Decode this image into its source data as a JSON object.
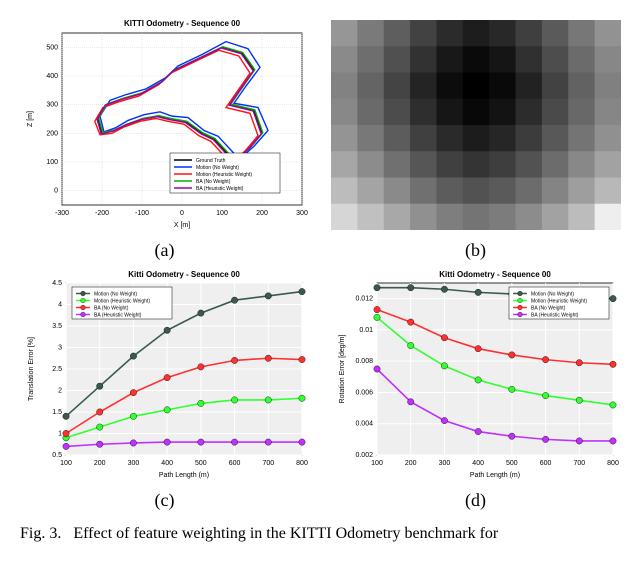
{
  "panel_a": {
    "title": "KITTI Odometry - Sequence 00",
    "xlabel": "X [m]",
    "ylabel": "Z [m]",
    "xlim": [
      -300,
      300
    ],
    "ylim": [
      -50,
      550
    ],
    "xticks": [
      -300,
      -200,
      -100,
      0,
      100,
      200,
      300
    ],
    "yticks": [
      0,
      100,
      200,
      300,
      400,
      500
    ],
    "bg_color": "#ffffff",
    "grid_color": "#d0d0d0",
    "series": [
      {
        "name": "Ground Truth",
        "color": "#000000",
        "points": [
          [
            -20,
            10
          ],
          [
            20,
            10
          ],
          [
            40,
            50
          ],
          [
            80,
            60
          ],
          [
            120,
            120
          ],
          [
            80,
            180
          ],
          [
            50,
            200
          ],
          [
            10,
            240
          ],
          [
            -30,
            250
          ],
          [
            -60,
            260
          ],
          [
            -100,
            250
          ],
          [
            -140,
            230
          ],
          [
            -170,
            210
          ],
          [
            -200,
            200
          ],
          [
            -210,
            250
          ],
          [
            -190,
            300
          ],
          [
            -150,
            320
          ],
          [
            -100,
            340
          ],
          [
            -50,
            380
          ],
          [
            -20,
            420
          ],
          [
            40,
            460
          ],
          [
            100,
            500
          ],
          [
            150,
            480
          ],
          [
            180,
            420
          ],
          [
            150,
            360
          ],
          [
            120,
            300
          ],
          [
            180,
            280
          ],
          [
            200,
            200
          ],
          [
            170,
            150
          ],
          [
            130,
            100
          ],
          [
            100,
            50
          ],
          [
            60,
            20
          ],
          [
            -20,
            10
          ]
        ]
      },
      {
        "name": "Motion (No Weight)",
        "color": "#0030ff",
        "points": [
          [
            -15,
            5
          ],
          [
            25,
            15
          ],
          [
            45,
            55
          ],
          [
            85,
            70
          ],
          [
            130,
            130
          ],
          [
            90,
            190
          ],
          [
            55,
            210
          ],
          [
            15,
            255
          ],
          [
            -25,
            260
          ],
          [
            -55,
            275
          ],
          [
            -95,
            265
          ],
          [
            -135,
            245
          ],
          [
            -165,
            220
          ],
          [
            -195,
            205
          ],
          [
            -205,
            260
          ],
          [
            -180,
            315
          ],
          [
            -140,
            335
          ],
          [
            -90,
            355
          ],
          [
            -40,
            395
          ],
          [
            -10,
            435
          ],
          [
            50,
            475
          ],
          [
            110,
            520
          ],
          [
            165,
            495
          ],
          [
            195,
            430
          ],
          [
            160,
            365
          ],
          [
            130,
            305
          ],
          [
            190,
            290
          ],
          [
            215,
            210
          ],
          [
            180,
            155
          ],
          [
            140,
            105
          ],
          [
            105,
            55
          ],
          [
            65,
            25
          ],
          [
            -15,
            5
          ]
        ]
      },
      {
        "name": "Motion (Heuristic Weight)",
        "color": "#ff1010",
        "points": [
          [
            -25,
            15
          ],
          [
            15,
            5
          ],
          [
            35,
            45
          ],
          [
            75,
            52
          ],
          [
            112,
            112
          ],
          [
            72,
            172
          ],
          [
            42,
            192
          ],
          [
            5,
            232
          ],
          [
            -35,
            242
          ],
          [
            -65,
            252
          ],
          [
            -105,
            242
          ],
          [
            -145,
            222
          ],
          [
            -175,
            200
          ],
          [
            -205,
            195
          ],
          [
            -218,
            242
          ],
          [
            -198,
            290
          ],
          [
            -158,
            310
          ],
          [
            -108,
            330
          ],
          [
            -58,
            370
          ],
          [
            -28,
            410
          ],
          [
            32,
            450
          ],
          [
            92,
            490
          ],
          [
            142,
            470
          ],
          [
            170,
            410
          ],
          [
            140,
            350
          ],
          [
            110,
            290
          ],
          [
            170,
            270
          ],
          [
            190,
            192
          ],
          [
            160,
            142
          ],
          [
            122,
            92
          ],
          [
            92,
            42
          ],
          [
            52,
            12
          ],
          [
            -25,
            15
          ]
        ]
      },
      {
        "name": "BA (No Weight)",
        "color": "#00b000",
        "points": [
          [
            -18,
            8
          ],
          [
            22,
            12
          ],
          [
            42,
            52
          ],
          [
            82,
            62
          ],
          [
            122,
            122
          ],
          [
            82,
            182
          ],
          [
            52,
            202
          ],
          [
            12,
            242
          ],
          [
            -28,
            252
          ],
          [
            -58,
            262
          ],
          [
            -98,
            252
          ],
          [
            -138,
            232
          ],
          [
            -168,
            212
          ],
          [
            -198,
            202
          ],
          [
            -208,
            252
          ],
          [
            -188,
            302
          ],
          [
            -148,
            322
          ],
          [
            -98,
            342
          ],
          [
            -48,
            382
          ],
          [
            -18,
            422
          ],
          [
            42,
            462
          ],
          [
            102,
            502
          ],
          [
            152,
            482
          ],
          [
            182,
            422
          ],
          [
            152,
            362
          ],
          [
            122,
            302
          ],
          [
            182,
            282
          ],
          [
            202,
            202
          ],
          [
            172,
            152
          ],
          [
            132,
            102
          ],
          [
            102,
            52
          ],
          [
            62,
            22
          ],
          [
            -18,
            8
          ]
        ]
      },
      {
        "name": "BA (Heuristic Weight)",
        "color": "#a000a0",
        "points": [
          [
            -22,
            12
          ],
          [
            18,
            8
          ],
          [
            38,
            48
          ],
          [
            78,
            58
          ],
          [
            118,
            118
          ],
          [
            78,
            178
          ],
          [
            48,
            198
          ],
          [
            8,
            238
          ],
          [
            -32,
            248
          ],
          [
            -62,
            258
          ],
          [
            -102,
            248
          ],
          [
            -142,
            228
          ],
          [
            -172,
            208
          ],
          [
            -202,
            198
          ],
          [
            -212,
            248
          ],
          [
            -192,
            298
          ],
          [
            -152,
            318
          ],
          [
            -102,
            338
          ],
          [
            -52,
            378
          ],
          [
            -22,
            418
          ],
          [
            38,
            458
          ],
          [
            98,
            498
          ],
          [
            148,
            478
          ],
          [
            178,
            418
          ],
          [
            148,
            358
          ],
          [
            118,
            298
          ],
          [
            178,
            278
          ],
          [
            198,
            198
          ],
          [
            168,
            148
          ],
          [
            128,
            98
          ],
          [
            98,
            48
          ],
          [
            58,
            18
          ],
          [
            -22,
            12
          ]
        ]
      }
    ]
  },
  "panel_b": {
    "rows": 8,
    "cols": 11,
    "colors": [
      [
        "#969696",
        "#7a7a7a",
        "#5e5e5e",
        "#424242",
        "#2b2b2b",
        "#1d1d1d",
        "#282828",
        "#3f3f3f",
        "#5a5a5a",
        "#777777",
        "#929292"
      ],
      [
        "#8a8a8a",
        "#6e6e6e",
        "#505050",
        "#323232",
        "#181818",
        "#0a0a0a",
        "#151515",
        "#303030",
        "#4d4d4d",
        "#6b6b6b",
        "#878787"
      ],
      [
        "#828282",
        "#646464",
        "#444444",
        "#242424",
        "#0c0c0c",
        "#000000",
        "#090909",
        "#222222",
        "#424242",
        "#626262",
        "#808080"
      ],
      [
        "#888888",
        "#6a6a6a",
        "#4c4c4c",
        "#2e2e2e",
        "#161616",
        "#080808",
        "#131313",
        "#2c2c2c",
        "#4a4a4a",
        "#686868",
        "#868686"
      ],
      [
        "#949494",
        "#787878",
        "#5c5c5c",
        "#404040",
        "#2a2a2a",
        "#1c1c1c",
        "#262626",
        "#3c3c3c",
        "#585858",
        "#747474",
        "#909090"
      ],
      [
        "#a6a6a6",
        "#8c8c8c",
        "#707070",
        "#565656",
        "#404040",
        "#343434",
        "#3e3e3e",
        "#525252",
        "#6c6c6c",
        "#888888",
        "#a2a2a2"
      ],
      [
        "#bcbcbc",
        "#a4a4a4",
        "#8a8a8a",
        "#707070",
        "#5c5c5c",
        "#525252",
        "#5a5a5a",
        "#6c6c6c",
        "#848484",
        "#9e9e9e",
        "#b8b8b8"
      ],
      [
        "#d6d6d6",
        "#c0c0c0",
        "#a8a8a8",
        "#909090",
        "#7e7e7e",
        "#747474",
        "#7c7c7c",
        "#8c8c8c",
        "#a2a2a2",
        "#bcbcbc",
        "#eeeeee"
      ]
    ]
  },
  "panel_c": {
    "title": "Kitti Odometry - Sequence 00",
    "xlabel": "Path Length (m)",
    "ylabel": "Translation Error [%]",
    "xlim": [
      100,
      800
    ],
    "ylim": [
      0.5,
      4.5
    ],
    "xticks": [
      100,
      200,
      300,
      400,
      500,
      600,
      700,
      800
    ],
    "yticks": [
      0.5,
      1,
      1.5,
      2,
      2.5,
      3,
      3.5,
      4,
      4.5
    ],
    "bg_color": "#efefef",
    "grid_color": "#ffffff",
    "series": [
      {
        "name": "Motion (No Weight)",
        "color": "#3a5a4a",
        "marker": "circle",
        "values": [
          [
            100,
            1.4
          ],
          [
            200,
            2.1
          ],
          [
            300,
            2.8
          ],
          [
            400,
            3.4
          ],
          [
            500,
            3.8
          ],
          [
            600,
            4.1
          ],
          [
            700,
            4.2
          ],
          [
            800,
            4.3
          ]
        ]
      },
      {
        "name": "Motion (Heuristic Weight)",
        "color": "#30ff30",
        "marker": "circle",
        "values": [
          [
            100,
            0.9
          ],
          [
            200,
            1.15
          ],
          [
            300,
            1.4
          ],
          [
            400,
            1.55
          ],
          [
            500,
            1.7
          ],
          [
            600,
            1.78
          ],
          [
            700,
            1.78
          ],
          [
            800,
            1.82
          ]
        ]
      },
      {
        "name": "BA (No Weight)",
        "color": "#ff3030",
        "marker": "circle",
        "values": [
          [
            100,
            1.0
          ],
          [
            200,
            1.5
          ],
          [
            300,
            1.95
          ],
          [
            400,
            2.3
          ],
          [
            500,
            2.55
          ],
          [
            600,
            2.7
          ],
          [
            700,
            2.75
          ],
          [
            800,
            2.72
          ]
        ]
      },
      {
        "name": "BA (Heuristic Weight)",
        "color": "#c030ff",
        "marker": "circle",
        "values": [
          [
            100,
            0.7
          ],
          [
            200,
            0.75
          ],
          [
            300,
            0.78
          ],
          [
            400,
            0.8
          ],
          [
            500,
            0.8
          ],
          [
            600,
            0.8
          ],
          [
            700,
            0.8
          ],
          [
            800,
            0.8
          ]
        ]
      }
    ]
  },
  "panel_d": {
    "title": "Kitti Odometry - Sequence 00",
    "xlabel": "Path Length (m)",
    "ylabel": "Rotation Error [deg/m]",
    "xlim": [
      100,
      800
    ],
    "ylim": [
      0.002,
      0.013
    ],
    "xticks": [
      100,
      200,
      300,
      400,
      500,
      600,
      700,
      800
    ],
    "yticks": [
      0.002,
      0.004,
      0.006,
      0.008,
      0.01,
      0.012
    ],
    "ytick_labels": [
      "0.002",
      "0.004",
      "0.006",
      "0.008",
      "0.01",
      " 0.012"
    ],
    "bg_color": "#efefef",
    "grid_color": "#ffffff",
    "series": [
      {
        "name": "Motion (No Weight)",
        "color": "#3a5a4a",
        "marker": "circle",
        "values": [
          [
            100,
            0.0127
          ],
          [
            200,
            0.0127
          ],
          [
            300,
            0.0126
          ],
          [
            400,
            0.0124
          ],
          [
            500,
            0.0123
          ],
          [
            600,
            0.0122
          ],
          [
            700,
            0.0121
          ],
          [
            800,
            0.012
          ]
        ]
      },
      {
        "name": "Motion (Heuristic Weight)",
        "color": "#30ff30",
        "marker": "circle",
        "values": [
          [
            100,
            0.0108
          ],
          [
            200,
            0.009
          ],
          [
            300,
            0.0077
          ],
          [
            400,
            0.0068
          ],
          [
            500,
            0.0062
          ],
          [
            600,
            0.0058
          ],
          [
            700,
            0.0055
          ],
          [
            800,
            0.0052
          ]
        ]
      },
      {
        "name": "BA (No Weight)",
        "color": "#ff3030",
        "marker": "circle",
        "values": [
          [
            100,
            0.0113
          ],
          [
            200,
            0.0105
          ],
          [
            300,
            0.0095
          ],
          [
            400,
            0.0088
          ],
          [
            500,
            0.0084
          ],
          [
            600,
            0.0081
          ],
          [
            700,
            0.0079
          ],
          [
            800,
            0.0078
          ]
        ]
      },
      {
        "name": "BA (Heuristic Weight)",
        "color": "#c030ff",
        "marker": "circle",
        "values": [
          [
            100,
            0.0075
          ],
          [
            200,
            0.0054
          ],
          [
            300,
            0.0042
          ],
          [
            400,
            0.0035
          ],
          [
            500,
            0.0032
          ],
          [
            600,
            0.003
          ],
          [
            700,
            0.0029
          ],
          [
            800,
            0.0029
          ]
        ]
      }
    ]
  },
  "labels": {
    "a": "(a)",
    "b": "(b)",
    "c": "(c)",
    "d": "(d)"
  },
  "caption": {
    "prefix": "Fig. 3.",
    "text": "Effect of feature weighting in the KITTI Odometry benchmark for"
  }
}
